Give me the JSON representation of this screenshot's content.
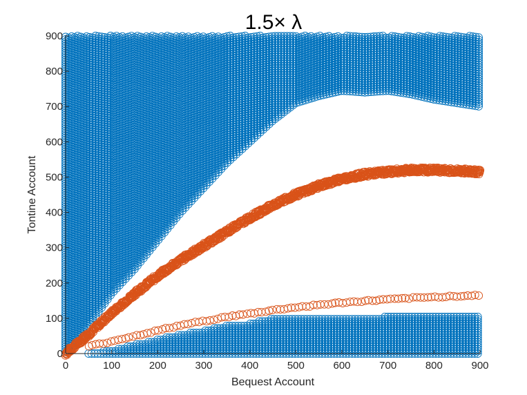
{
  "chart_data": {
    "type": "scatter",
    "title": "1.5× λ",
    "xlabel": "Bequest Account",
    "ylabel": "Tontine Account",
    "xlim": [
      0,
      900
    ],
    "ylim": [
      0,
      900
    ],
    "xticks": [
      "0",
      "100",
      "200",
      "300",
      "400",
      "500",
      "600",
      "700",
      "800",
      "900"
    ],
    "yticks": [
      "0",
      "100",
      "200",
      "300",
      "400",
      "500",
      "600",
      "700",
      "800",
      "900"
    ],
    "grid": false,
    "marker": "open-circle",
    "colors": {
      "blue": "#0072BD",
      "orange": "#D95319"
    },
    "series": [
      {
        "color": "blue",
        "role": "upper-region",
        "x": [
          0,
          50,
          100,
          150,
          200,
          250,
          300,
          350,
          400,
          450,
          500,
          550,
          600,
          650,
          700,
          750,
          800,
          850,
          900
        ],
        "y_lower": [
          0,
          80,
          170,
          240,
          320,
          400,
          470,
          540,
          600,
          660,
          710,
          730,
          745,
          740,
          745,
          735,
          720,
          710,
          700
        ],
        "y_upper": 900
      },
      {
        "color": "blue",
        "role": "lower-region",
        "x": [
          50,
          100,
          150,
          200,
          250,
          300,
          350,
          400,
          450,
          500,
          550,
          600,
          650,
          700,
          750,
          800,
          850,
          900
        ],
        "y_lower": 0,
        "y_upper": [
          0,
          10,
          25,
          40,
          55,
          65,
          80,
          85,
          100,
          100,
          100,
          100,
          100,
          105,
          110,
          110,
          110,
          110
        ]
      },
      {
        "color": "orange",
        "role": "upper-curve",
        "x": [
          0,
          50,
          100,
          150,
          200,
          250,
          300,
          350,
          400,
          450,
          500,
          550,
          600,
          650,
          700,
          750,
          800,
          850,
          900
        ],
        "y": [
          0,
          55,
          115,
          170,
          220,
          265,
          305,
          345,
          385,
          420,
          450,
          475,
          495,
          508,
          515,
          520,
          520,
          518,
          515
        ]
      },
      {
        "color": "orange",
        "role": "lower-curve",
        "x": [
          50,
          100,
          150,
          200,
          250,
          300,
          350,
          400,
          450,
          500,
          550,
          600,
          650,
          700,
          750,
          800,
          850,
          900
        ],
        "y": [
          20,
          35,
          50,
          65,
          80,
          92,
          104,
          113,
          123,
          131,
          138,
          144,
          149,
          153,
          157,
          160,
          163,
          165
        ]
      }
    ]
  }
}
